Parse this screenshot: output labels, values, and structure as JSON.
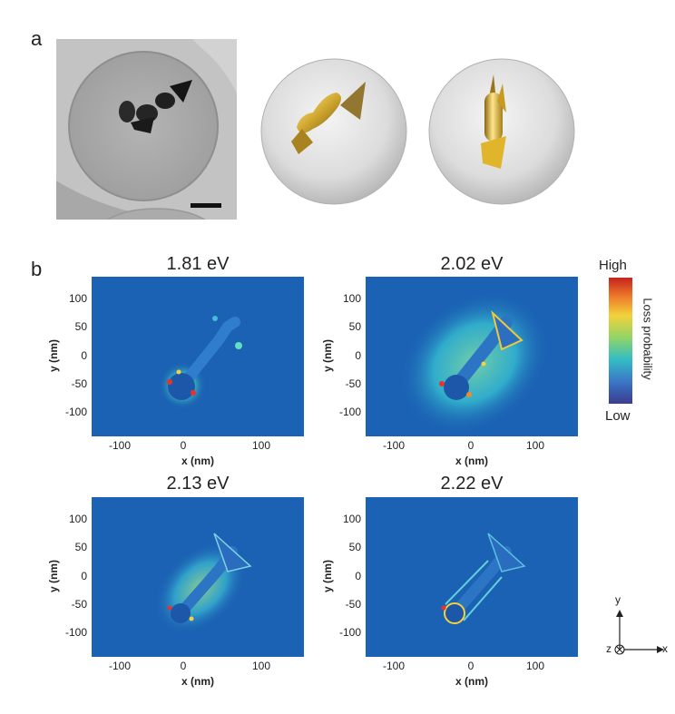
{
  "panel_a": {
    "letter": "a"
  },
  "panel_b": {
    "letter": "b",
    "maps": [
      {
        "energy": "1.81 eV",
        "variant": "low"
      },
      {
        "energy": "2.02 eV",
        "variant": "high"
      },
      {
        "energy": "2.13 eV",
        "variant": "mid"
      },
      {
        "energy": "2.22 eV",
        "variant": "edge"
      }
    ],
    "x_label": "x (nm)",
    "y_label": "y (nm)",
    "x_ticks": [
      "-100",
      "0",
      "100"
    ],
    "y_ticks": [
      "100",
      "50",
      "0",
      "-50",
      "-100"
    ],
    "colorbar": {
      "high": "High",
      "low": "Low",
      "label": "Loss probability"
    }
  },
  "axes_indicator": {
    "y": "y",
    "x": "x",
    "z": "z"
  },
  "colors": {
    "map_background": "#1b62b4",
    "gold": "#c8a22c"
  }
}
